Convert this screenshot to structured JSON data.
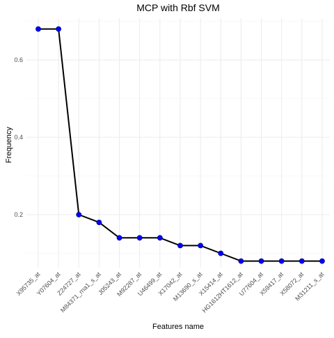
{
  "chart_data": {
    "type": "line",
    "title": "MCP with Rbf SVM",
    "xlabel": "Features name",
    "ylabel": "Frequency",
    "categories": [
      "X95735_at",
      "Y07604_at",
      "Z24727_at",
      "M84371_rna1_s_at",
      "J05243_at",
      "M92287_at",
      "U46499_at",
      "X17042_at",
      "M13690_s_at",
      "X15414_at",
      "HG1612HT1612_at",
      "U77604_at",
      "X59417_at",
      "X58072_at",
      "M31211_s_at"
    ],
    "values": [
      0.68,
      0.68,
      0.2,
      0.18,
      0.14,
      0.14,
      0.14,
      0.12,
      0.12,
      0.1,
      0.08,
      0.08,
      0.08,
      0.08,
      0.08
    ],
    "ylim": [
      0.06,
      0.7
    ],
    "yticks": [
      0.2,
      0.4,
      0.6
    ],
    "ytick_labels": [
      "0.2",
      "0.4",
      "0.6"
    ],
    "grid": true,
    "line_color": "#000000",
    "point_color": "#0000ff"
  }
}
